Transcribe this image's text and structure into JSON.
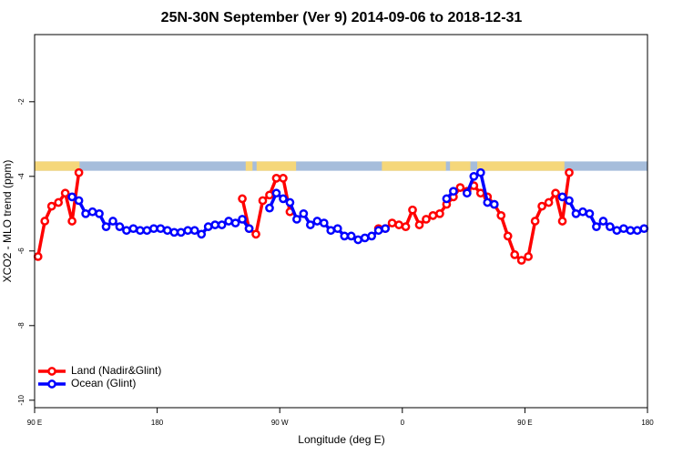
{
  "chart_data": {
    "type": "line",
    "title": "25N-30N September (Ver 9)   2014-09-06 to 2018-12-31",
    "x_label": "Longitude (deg E)",
    "y_label": "XCO2 - MLO trend (ppm)",
    "xlim": [
      90,
      540
    ],
    "ylim": [
      -10.2,
      -0.2
    ],
    "xticks": [
      {
        "value": 90,
        "label": "90 E"
      },
      180,
      {
        "value": 270,
        "label": "90 W"
      },
      {
        "value": 360,
        "label": "0"
      },
      {
        "value": 450,
        "label": "90 E"
      },
      {
        "value": 540,
        "label": "180"
      }
    ],
    "yticks": [
      -10,
      -8,
      -6,
      -4,
      -2
    ],
    "legend": "bottom-left",
    "land_strip": {
      "ylim": [
        -3.85,
        -3.6
      ],
      "ocean_color": "#a6bddb",
      "land_color": "#f5d77a",
      "land_segments": [
        [
          90,
          123
        ],
        [
          245,
          250
        ],
        [
          253,
          282
        ],
        [
          345,
          392
        ],
        [
          395,
          410
        ],
        [
          415,
          479
        ]
      ]
    },
    "series": [
      {
        "name": "Land (Nadir&Glint)",
        "color": "#ff0000",
        "x": [
          92.5,
          97.5,
          102.5,
          107.5,
          112.5,
          117.5,
          122.5,
          182.5,
          242.5,
          247.5,
          252.5,
          257.5,
          262.5,
          267.5,
          272.5,
          277.5,
          312.5,
          342.5,
          347.5,
          352.5,
          357.5,
          362.5,
          367.5,
          372.5,
          377.5,
          382.5,
          387.5,
          392.5,
          397.5,
          402.5,
          407.5,
          412.5,
          417.5,
          422.5,
          427.5,
          432.5,
          437.5,
          442.5,
          447.5,
          452.5,
          457.5,
          462.5,
          467.5,
          472.5,
          477.5,
          482.5
        ],
        "values": [
          -6.15,
          -5.2,
          -4.8,
          -4.7,
          -4.45,
          -5.2,
          -3.9,
          null,
          -4.6,
          -5.4,
          -5.55,
          -4.65,
          -4.5,
          -4.05,
          -4.05,
          -4.95,
          null,
          -5.4,
          -5.4,
          -5.25,
          -5.3,
          -5.35,
          -4.9,
          -5.3,
          -5.15,
          -5.05,
          -5.0,
          -4.75,
          -4.55,
          -4.3,
          -4.4,
          -4.25,
          -4.45,
          -4.55,
          -4.75,
          -5.05,
          -5.6,
          -6.1,
          -6.25,
          -6.15,
          -5.2,
          -4.8,
          -4.7,
          -4.45,
          -5.2,
          -3.9
        ]
      },
      {
        "name": "Ocean (Glint)",
        "color": "#0000ff",
        "x": [
          117.5,
          122.5,
          127.5,
          132.5,
          137.5,
          142.5,
          147.5,
          152.5,
          157.5,
          162.5,
          167.5,
          172.5,
          177.5,
          182.5,
          187.5,
          192.5,
          197.5,
          202.5,
          207.5,
          212.5,
          217.5,
          222.5,
          227.5,
          232.5,
          237.5,
          242.5,
          247.5,
          255,
          262.5,
          267.5,
          272.5,
          277.5,
          282.5,
          287.5,
          292.5,
          297.5,
          302.5,
          307.5,
          312.5,
          317.5,
          322.5,
          327.5,
          332.5,
          337.5,
          342.5,
          347.5,
          370,
          392.5,
          397.5,
          402.5,
          407.5,
          412.5,
          417.5,
          422.5,
          427.5,
          450,
          477.5,
          482.5,
          487.5,
          492.5,
          497.5,
          502.5,
          507.5,
          512.5,
          517.5,
          522.5,
          527.5,
          532.5,
          537.5
        ],
        "values": [
          -4.55,
          -4.65,
          -5.0,
          -4.95,
          -5.0,
          -5.35,
          -5.2,
          -5.35,
          -5.45,
          -5.4,
          -5.45,
          -5.45,
          -5.4,
          -5.4,
          -5.45,
          -5.5,
          -5.5,
          -5.45,
          -5.45,
          -5.55,
          -5.35,
          -5.3,
          -5.3,
          -5.2,
          -5.25,
          -5.15,
          -5.4,
          null,
          -4.85,
          -4.45,
          -4.6,
          -4.7,
          -5.15,
          -5.0,
          -5.3,
          -5.2,
          -5.25,
          -5.45,
          -5.4,
          -5.6,
          -5.6,
          -5.7,
          -5.65,
          -5.6,
          -5.45,
          -5.4,
          null,
          -4.6,
          -4.4,
          null,
          -4.45,
          -4.0,
          -3.9,
          -4.7,
          -4.75,
          null,
          -4.55,
          -4.65,
          -5.0,
          -4.95,
          -5.0,
          -5.35,
          -5.2,
          -5.35,
          -5.45,
          -5.4,
          -5.45,
          -5.45,
          -5.4
        ]
      }
    ]
  }
}
